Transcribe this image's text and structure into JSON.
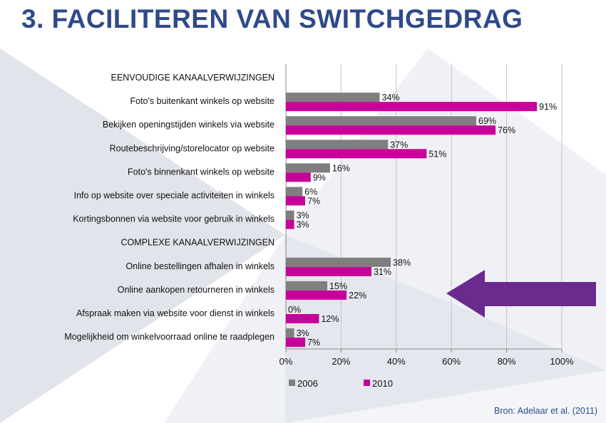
{
  "slide": {
    "title": "3. FACILITEREN VAN SWITCHGEDRAG",
    "source": "Bron: Adelaar et al. (2011)",
    "colors": {
      "title": "#2f4a8a",
      "arrow": "#6a2a8e"
    },
    "decorations": [
      "purple-left-arrow-icon"
    ]
  },
  "chart_data": {
    "type": "bar",
    "orientation": "horizontal",
    "x_ticks": [
      "0%",
      "20%",
      "40%",
      "60%",
      "80%",
      "100%"
    ],
    "xlim": [
      0,
      100
    ],
    "grid": true,
    "legend_position": "bottom",
    "rows": [
      {
        "kind": "header",
        "label": "EENVOUDIGE KANAALVERWIJZINGEN"
      },
      {
        "kind": "category",
        "label": "Foto's buitenkant winkels op website",
        "values": [
          34,
          91
        ],
        "labels": [
          "34%",
          "91%"
        ]
      },
      {
        "kind": "category",
        "label": "Bekijken openingstijden winkels via website",
        "values": [
          69,
          76
        ],
        "labels": [
          "69%",
          "76%"
        ]
      },
      {
        "kind": "category",
        "label": "Routebeschrijving/storelocator op website",
        "values": [
          37,
          51
        ],
        "labels": [
          "37%",
          "51%"
        ]
      },
      {
        "kind": "category",
        "label": "Foto's binnenkant winkels op website",
        "values": [
          16,
          9
        ],
        "labels": [
          "16%",
          "9%"
        ]
      },
      {
        "kind": "category",
        "label": "Info op website over speciale activiteiten in winkels",
        "values": [
          6,
          7
        ],
        "labels": [
          "6%",
          "7%"
        ]
      },
      {
        "kind": "category",
        "label": "Kortingsbonnen via website voor gebruik in winkels",
        "values": [
          3,
          3
        ],
        "labels": [
          "3%",
          "3%"
        ]
      },
      {
        "kind": "header",
        "label": "COMPLEXE KANAALVERWIJZINGEN"
      },
      {
        "kind": "category",
        "label": "Online bestellingen afhalen in winkels",
        "values": [
          38,
          31
        ],
        "labels": [
          "38%",
          "31%"
        ]
      },
      {
        "kind": "category",
        "label": "Online aankopen retourneren in winkels",
        "values": [
          15,
          22
        ],
        "labels": [
          "15%",
          "22%"
        ]
      },
      {
        "kind": "category",
        "label": "Afspraak maken via website voor dienst in winkels",
        "values": [
          0,
          12
        ],
        "labels": [
          "0%",
          "12%"
        ]
      },
      {
        "kind": "category",
        "label": "Mogelijkheid om winkelvoorraad online te raadplegen",
        "values": [
          3,
          7
        ],
        "labels": [
          "3%",
          "7%"
        ]
      }
    ],
    "series": [
      {
        "name": "2006",
        "color": "#7f7f7f"
      },
      {
        "name": "2010",
        "color": "#c8009a"
      }
    ]
  }
}
